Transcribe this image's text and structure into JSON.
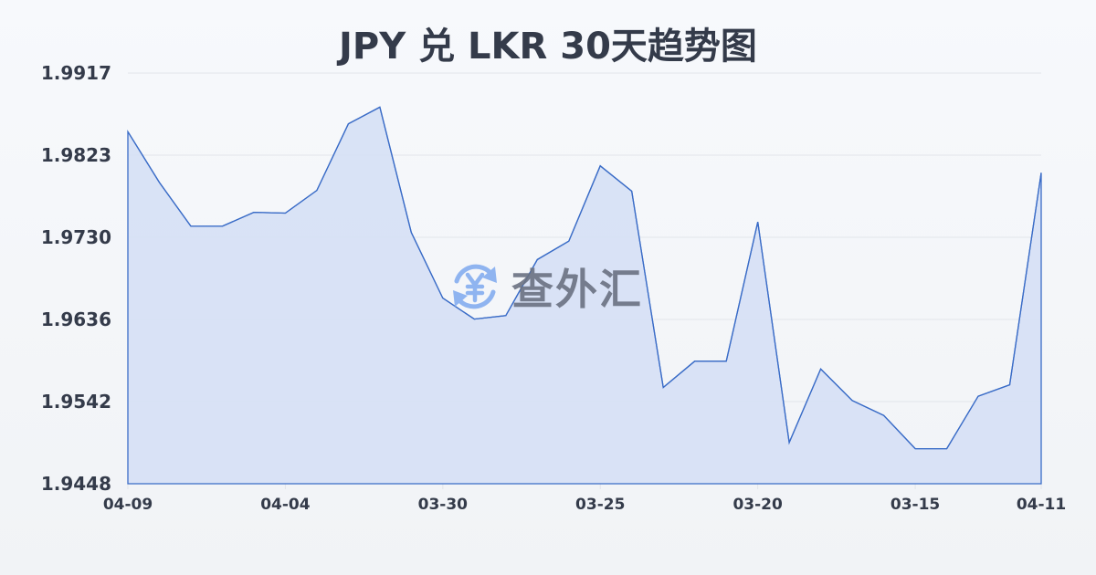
{
  "header": {
    "title": "JPY 兑 LKR 30天趋势图"
  },
  "watermark": {
    "icon": "yen-exchange-icon",
    "text": "查外汇"
  },
  "colors": {
    "line": "#3a6cc7",
    "fill": "#d6e0f5",
    "grid": "#e2e5ea",
    "text": "#343b4a",
    "watermark_icon": "#8fb4f0"
  },
  "chart_data": {
    "type": "area",
    "title": "JPY 兑 LKR 30天趋势图",
    "xlabel": "",
    "ylabel": "",
    "ylim": [
      1.9448,
      1.9917
    ],
    "yticks": [
      "1.9917",
      "1.9823",
      "1.9730",
      "1.9636",
      "1.9542",
      "1.9448"
    ],
    "xticks": [
      "04-09",
      "04-04",
      "03-30",
      "03-25",
      "03-20",
      "03-15",
      "04-11"
    ],
    "grid": true,
    "legend": null,
    "series": [
      {
        "name": "JPY/LKR",
        "values": [
          1.985,
          1.9792,
          1.9742,
          1.9742,
          1.9758,
          1.9757,
          1.9783,
          1.9859,
          1.9878,
          1.9735,
          1.966,
          1.9636,
          1.964,
          1.9704,
          1.9725,
          1.9811,
          1.9782,
          1.9558,
          1.9588,
          1.9588,
          1.9747,
          1.9495,
          1.9579,
          1.9543,
          1.9526,
          1.9488,
          1.9488,
          1.9548,
          1.9561,
          1.9803
        ]
      }
    ]
  }
}
